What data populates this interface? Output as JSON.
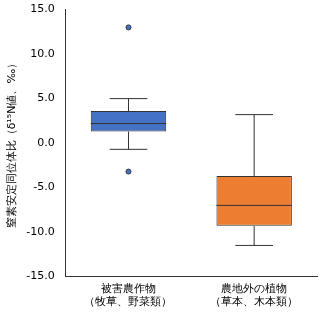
{
  "chart_data": {
    "type": "box",
    "y_label": "窒素安定同位体比（δ¹⁵N値、‰）",
    "categories": [
      [
        "被害農作物",
        "（牧草、野菜類）"
      ],
      [
        "農地外の植物",
        "（草本、木本類）"
      ]
    ],
    "boxes": [
      {
        "min": -0.7,
        "q1": 1.3,
        "median": 2.2,
        "q3": 3.6,
        "max": 5.0,
        "outliers": [
          13.0,
          -3.2
        ]
      },
      {
        "min": -11.5,
        "q1": -9.3,
        "median": -7.0,
        "q3": -3.7,
        "max": 3.2,
        "outliers": []
      }
    ],
    "colors": [
      "#4472c4",
      "#ed7d31"
    ],
    "ylim": [
      -15,
      15
    ],
    "yticks": [
      {
        "value": -15,
        "label": "-15.0"
      },
      {
        "value": -10,
        "label": "-10.0"
      },
      {
        "value": -5,
        "label": "-5.0"
      },
      {
        "value": 0,
        "label": "0.0"
      },
      {
        "value": 5,
        "label": "5.0"
      },
      {
        "value": 10,
        "label": "10.0"
      },
      {
        "value": 15,
        "label": "15.0"
      }
    ],
    "grid": false
  }
}
